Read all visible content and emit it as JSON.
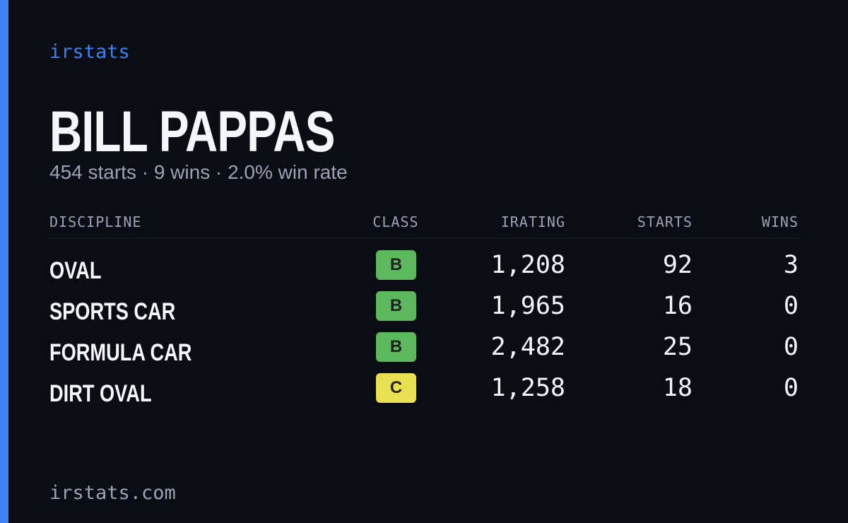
{
  "brand": "irstats",
  "header": {
    "title": "BILL PAPPAS",
    "subtitle": "454 starts · 9 wins · 2.0% win rate"
  },
  "table": {
    "columns": [
      "DISCIPLINE",
      "CLASS",
      "IRATING",
      "STARTS",
      "WINS"
    ],
    "rows": [
      [
        "OVAL",
        "B",
        "1,208",
        "92",
        "3"
      ],
      [
        "SPORTS CAR",
        "B",
        "1,965",
        "16",
        "0"
      ],
      [
        "FORMULA CAR",
        "B",
        "2,482",
        "25",
        "0"
      ],
      [
        "DIRT OVAL",
        "C",
        "1,258",
        "18",
        "0"
      ]
    ],
    "badge_colors": [
      "#5cb85c",
      "#5cb85c",
      "#5cb85c",
      "#e8e050"
    ]
  },
  "footer": "irstats.com"
}
